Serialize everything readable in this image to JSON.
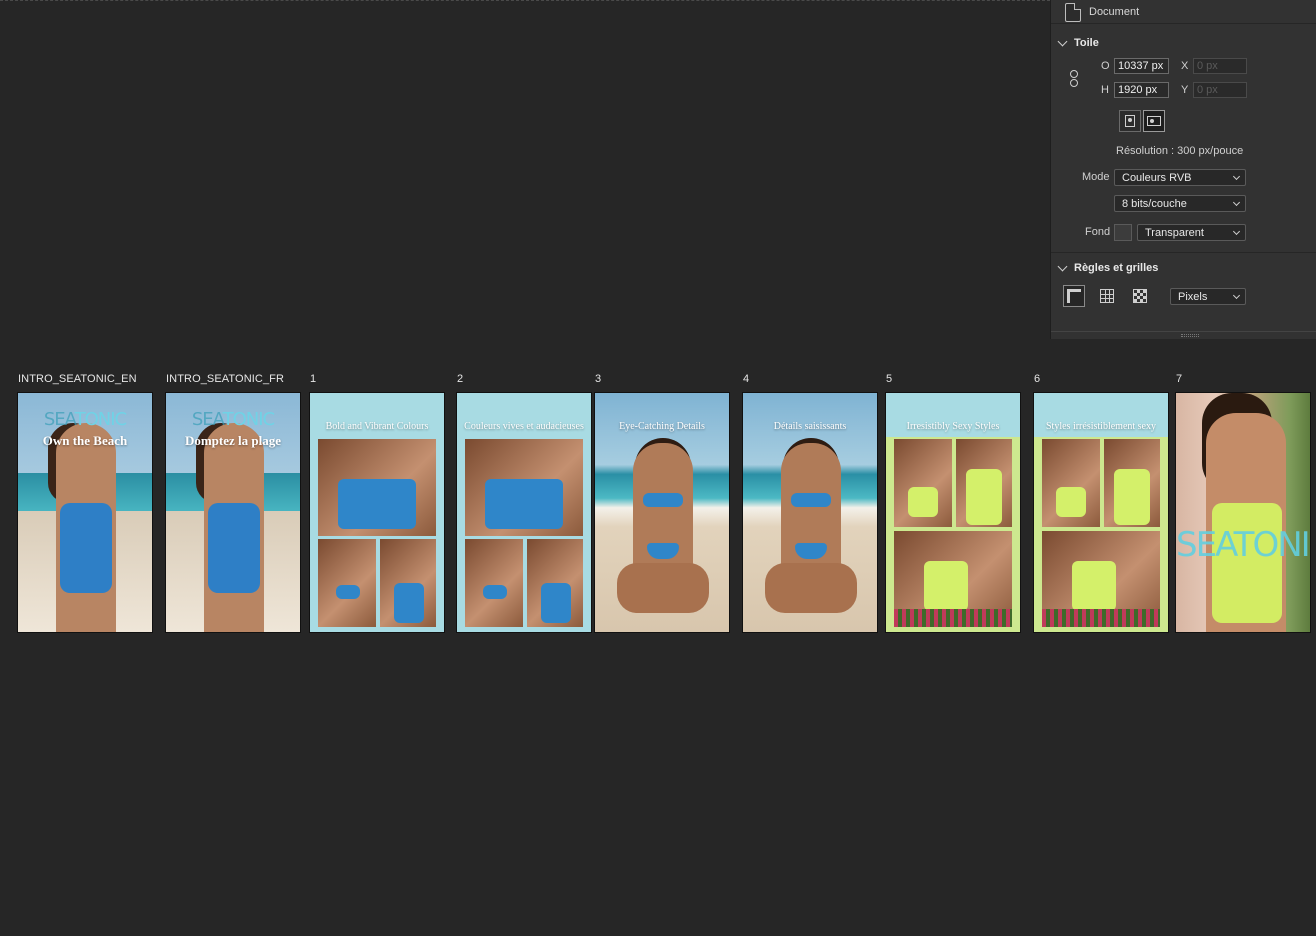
{
  "panel": {
    "document_label": "Document",
    "canvas_section": "Toile",
    "width_label": "O",
    "width_value": "10337 px",
    "height_label": "H",
    "height_value": "1920 px",
    "x_label": "X",
    "x_placeholder": "0 px",
    "y_label": "Y",
    "y_placeholder": "0 px",
    "resolution": "Résolution : 300 px/pouce",
    "mode_label": "Mode",
    "mode_value": "Couleurs RVB",
    "bit_depth": "8 bits/couche",
    "background_label": "Fond",
    "background_value": "Transparent",
    "rulers_section": "Règles et grilles",
    "units_value": "Pixels"
  },
  "artboards": [
    {
      "label": "INTRO_SEATONIC_EN",
      "brand_a": "SEA",
      "brand_b": "TONIC",
      "title": "Own the Beach"
    },
    {
      "label": "INTRO_SEATONIC_FR",
      "brand_a": "SEA",
      "brand_b": "TONIC",
      "title": "Domptez la plage"
    },
    {
      "label": "1",
      "title": "Bold and Vibrant Colours"
    },
    {
      "label": "2",
      "title": "Couleurs vives et audacieuses"
    },
    {
      "label": "3",
      "title": "Eye-Catching Details"
    },
    {
      "label": "4",
      "title": "Détails saisissants"
    },
    {
      "label": "5",
      "title": "Irresistibly Sexy Styles"
    },
    {
      "label": "6",
      "title": "Styles irrésistiblement sexy"
    },
    {
      "label": "7",
      "brand": "SEATONIC"
    }
  ]
}
